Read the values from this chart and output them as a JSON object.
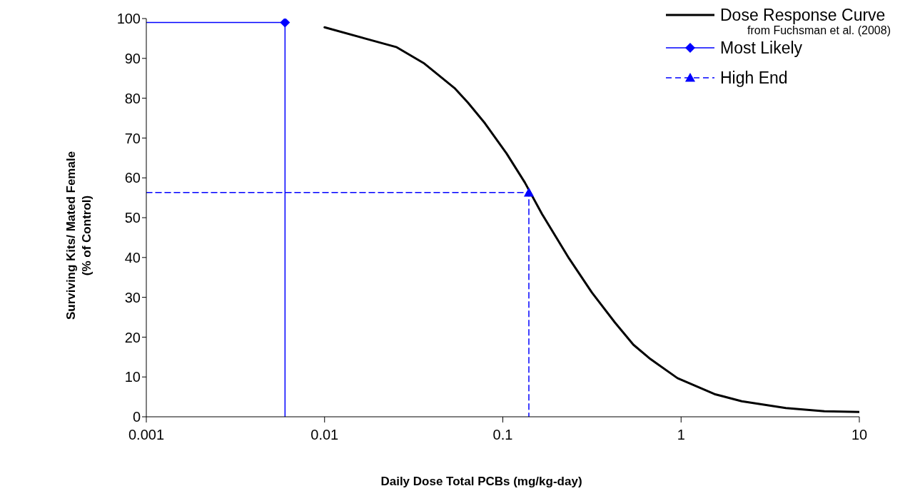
{
  "chart_data": {
    "type": "line",
    "xlabel": "Daily Dose Total PCBs (mg/kg-day)",
    "ylabel": "Surviving Kits/ Mated Female\n(% of Control)",
    "log": "x",
    "xlim": [
      0.001,
      10
    ],
    "xticks": [
      0.001,
      0.01,
      0.1,
      1,
      10
    ],
    "ylim": [
      0,
      100
    ],
    "yticks": [
      0,
      10,
      20,
      30,
      40,
      50,
      60,
      70,
      80,
      90,
      100
    ],
    "legend": "top right",
    "annotations": [
      "from Fuchsman et al. (2008)"
    ],
    "series": [
      {
        "name": "Dose Response Curve",
        "color": "#000000",
        "marker": "none",
        "line_style": "solid",
        "x": [
          0.01,
          0.0254,
          0.0363,
          0.054,
          0.0637,
          0.0794,
          0.105,
          0.133,
          0.166,
          0.235,
          0.316,
          0.425,
          0.54,
          0.673,
          0.955,
          1.54,
          2.19,
          3.87,
          6.37,
          10
        ],
        "values": [
          97.8,
          92.8,
          88.7,
          82.4,
          78.9,
          73.7,
          66.1,
          58.8,
          50.9,
          39.8,
          31.2,
          23.7,
          18.1,
          14.5,
          9.7,
          5.7,
          3.9,
          2.2,
          1.4,
          1.2
        ]
      },
      {
        "color": "#0000ff",
        "marker": "none",
        "line_style": "solid",
        "x": [
          0.001,
          0.006,
          0.006
        ],
        "values": [
          99,
          99,
          0
        ]
      },
      {
        "color": "#0000ff",
        "marker": "none",
        "line_style": "dashed",
        "x": [
          0.001,
          0.14,
          0.14
        ],
        "values": [
          56.3,
          56.3,
          0
        ]
      },
      {
        "name": "Most Likely",
        "color": "#0000ff",
        "marker": "diamond",
        "line_style": "solid",
        "x": [
          0.006
        ],
        "values": [
          99
        ]
      },
      {
        "name": "High End",
        "color": "#0000ff",
        "marker": "triangle",
        "line_style": "dashed",
        "x": [
          0.14
        ],
        "values": [
          56.3
        ]
      }
    ]
  }
}
